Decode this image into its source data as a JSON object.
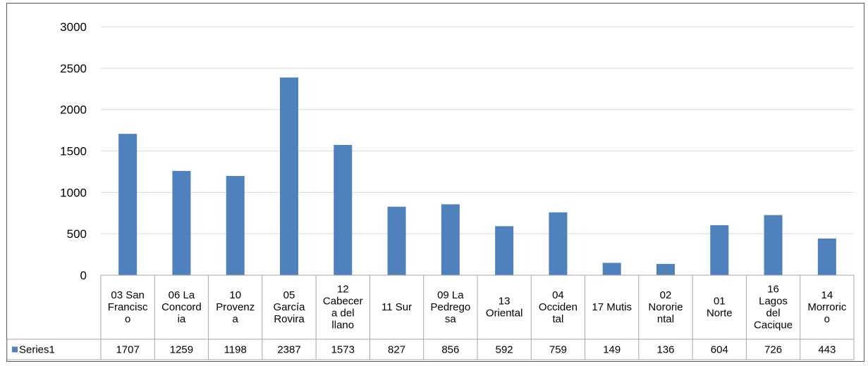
{
  "chart_data": {
    "type": "bar",
    "categories": [
      "03 San Francisco",
      "06 La Concordia",
      "10 Provenza",
      "05 García Rovira",
      "12 Cabecera del llano",
      "11 Sur",
      "09 La Pedregosa",
      "13 Oriental",
      "04 Occidental",
      "17 Mutis",
      "02 Nororiental",
      "01 Norte",
      "16 Lagos del Cacique",
      "14 Morrorico"
    ],
    "category_label_lines": [
      [
        "03 San",
        "Francisc",
        "o"
      ],
      [
        "06 La",
        "Concord",
        "ia"
      ],
      [
        "10",
        "Provenz",
        "a"
      ],
      [
        "05",
        "García",
        "Rovira"
      ],
      [
        "12",
        "Cabecer",
        "a del",
        "llano"
      ],
      [
        "11 Sur"
      ],
      [
        "09 La",
        "Pedrego",
        "sa"
      ],
      [
        "13",
        "Oriental"
      ],
      [
        "04",
        "Occiden",
        "tal"
      ],
      [
        "17 Mutis"
      ],
      [
        "02",
        "Nororie",
        "ntal"
      ],
      [
        "01",
        "Norte"
      ],
      [
        "16",
        "Lagos",
        "del",
        "Cacique"
      ],
      [
        "14",
        "Morroric",
        "o"
      ]
    ],
    "series": [
      {
        "name": "Series1",
        "values": [
          1707,
          1259,
          1198,
          2387,
          1573,
          827,
          856,
          592,
          759,
          149,
          136,
          604,
          726,
          443
        ],
        "color": "#4f81bd"
      }
    ],
    "ylim": [
      0,
      3000
    ],
    "yticks": [
      0,
      500,
      1000,
      1500,
      2000,
      2500,
      3000
    ],
    "grid": true,
    "legend": "data-table-left",
    "title": "",
    "xlabel": "",
    "ylabel": ""
  }
}
